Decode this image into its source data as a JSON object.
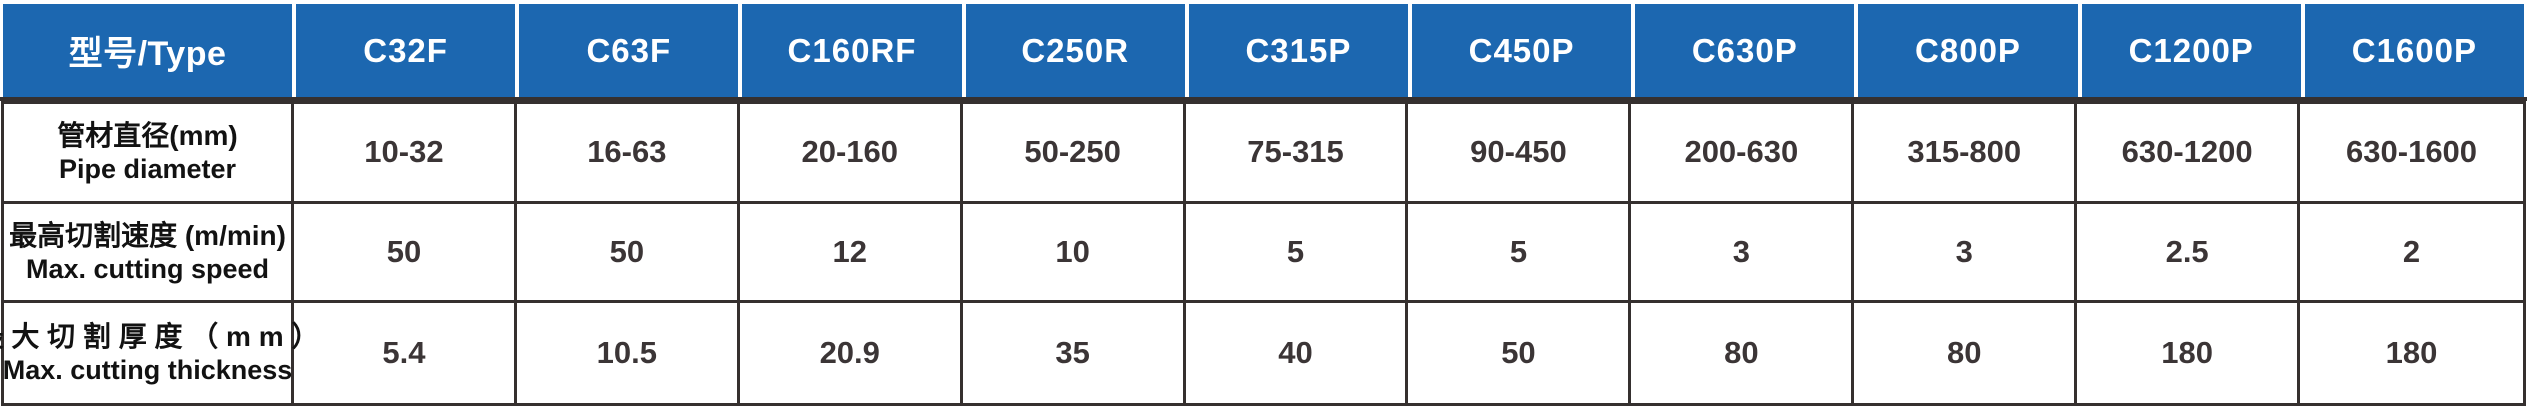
{
  "table": {
    "header": {
      "type_label": "型号/Type",
      "models": [
        "C32F",
        "C63F",
        "C160RF",
        "C250R",
        "C315P",
        "C450P",
        "C630P",
        "C800P",
        "C1200P",
        "C1600P"
      ]
    },
    "rows": [
      {
        "label_cn": "管材直径(mm)",
        "label_en": "Pipe diameter",
        "values": [
          "10-32",
          "16-63",
          "20-160",
          "50-250",
          "75-315",
          "90-450",
          "200-630",
          "315-800",
          "630-1200",
          "630-1600"
        ]
      },
      {
        "label_cn": "最高切割速度 (m/min)",
        "label_en": "Max. cutting speed",
        "values": [
          "50",
          "50",
          "12",
          "10",
          "5",
          "5",
          "3",
          "3",
          "2.5",
          "2"
        ]
      },
      {
        "label_cn": "最 大 切 割 厚 度 （ m m ）",
        "label_en": "Max. cutting thickness",
        "values": [
          "5.4",
          "10.5",
          "20.9",
          "35",
          "40",
          "50",
          "80",
          "80",
          "180",
          "180"
        ]
      }
    ],
    "colors": {
      "header_bg": "#1c67b0",
      "header_text": "#ffffff",
      "border_dark": "#35302f",
      "value_text": "#3b3536",
      "label_text": "#121212"
    }
  }
}
